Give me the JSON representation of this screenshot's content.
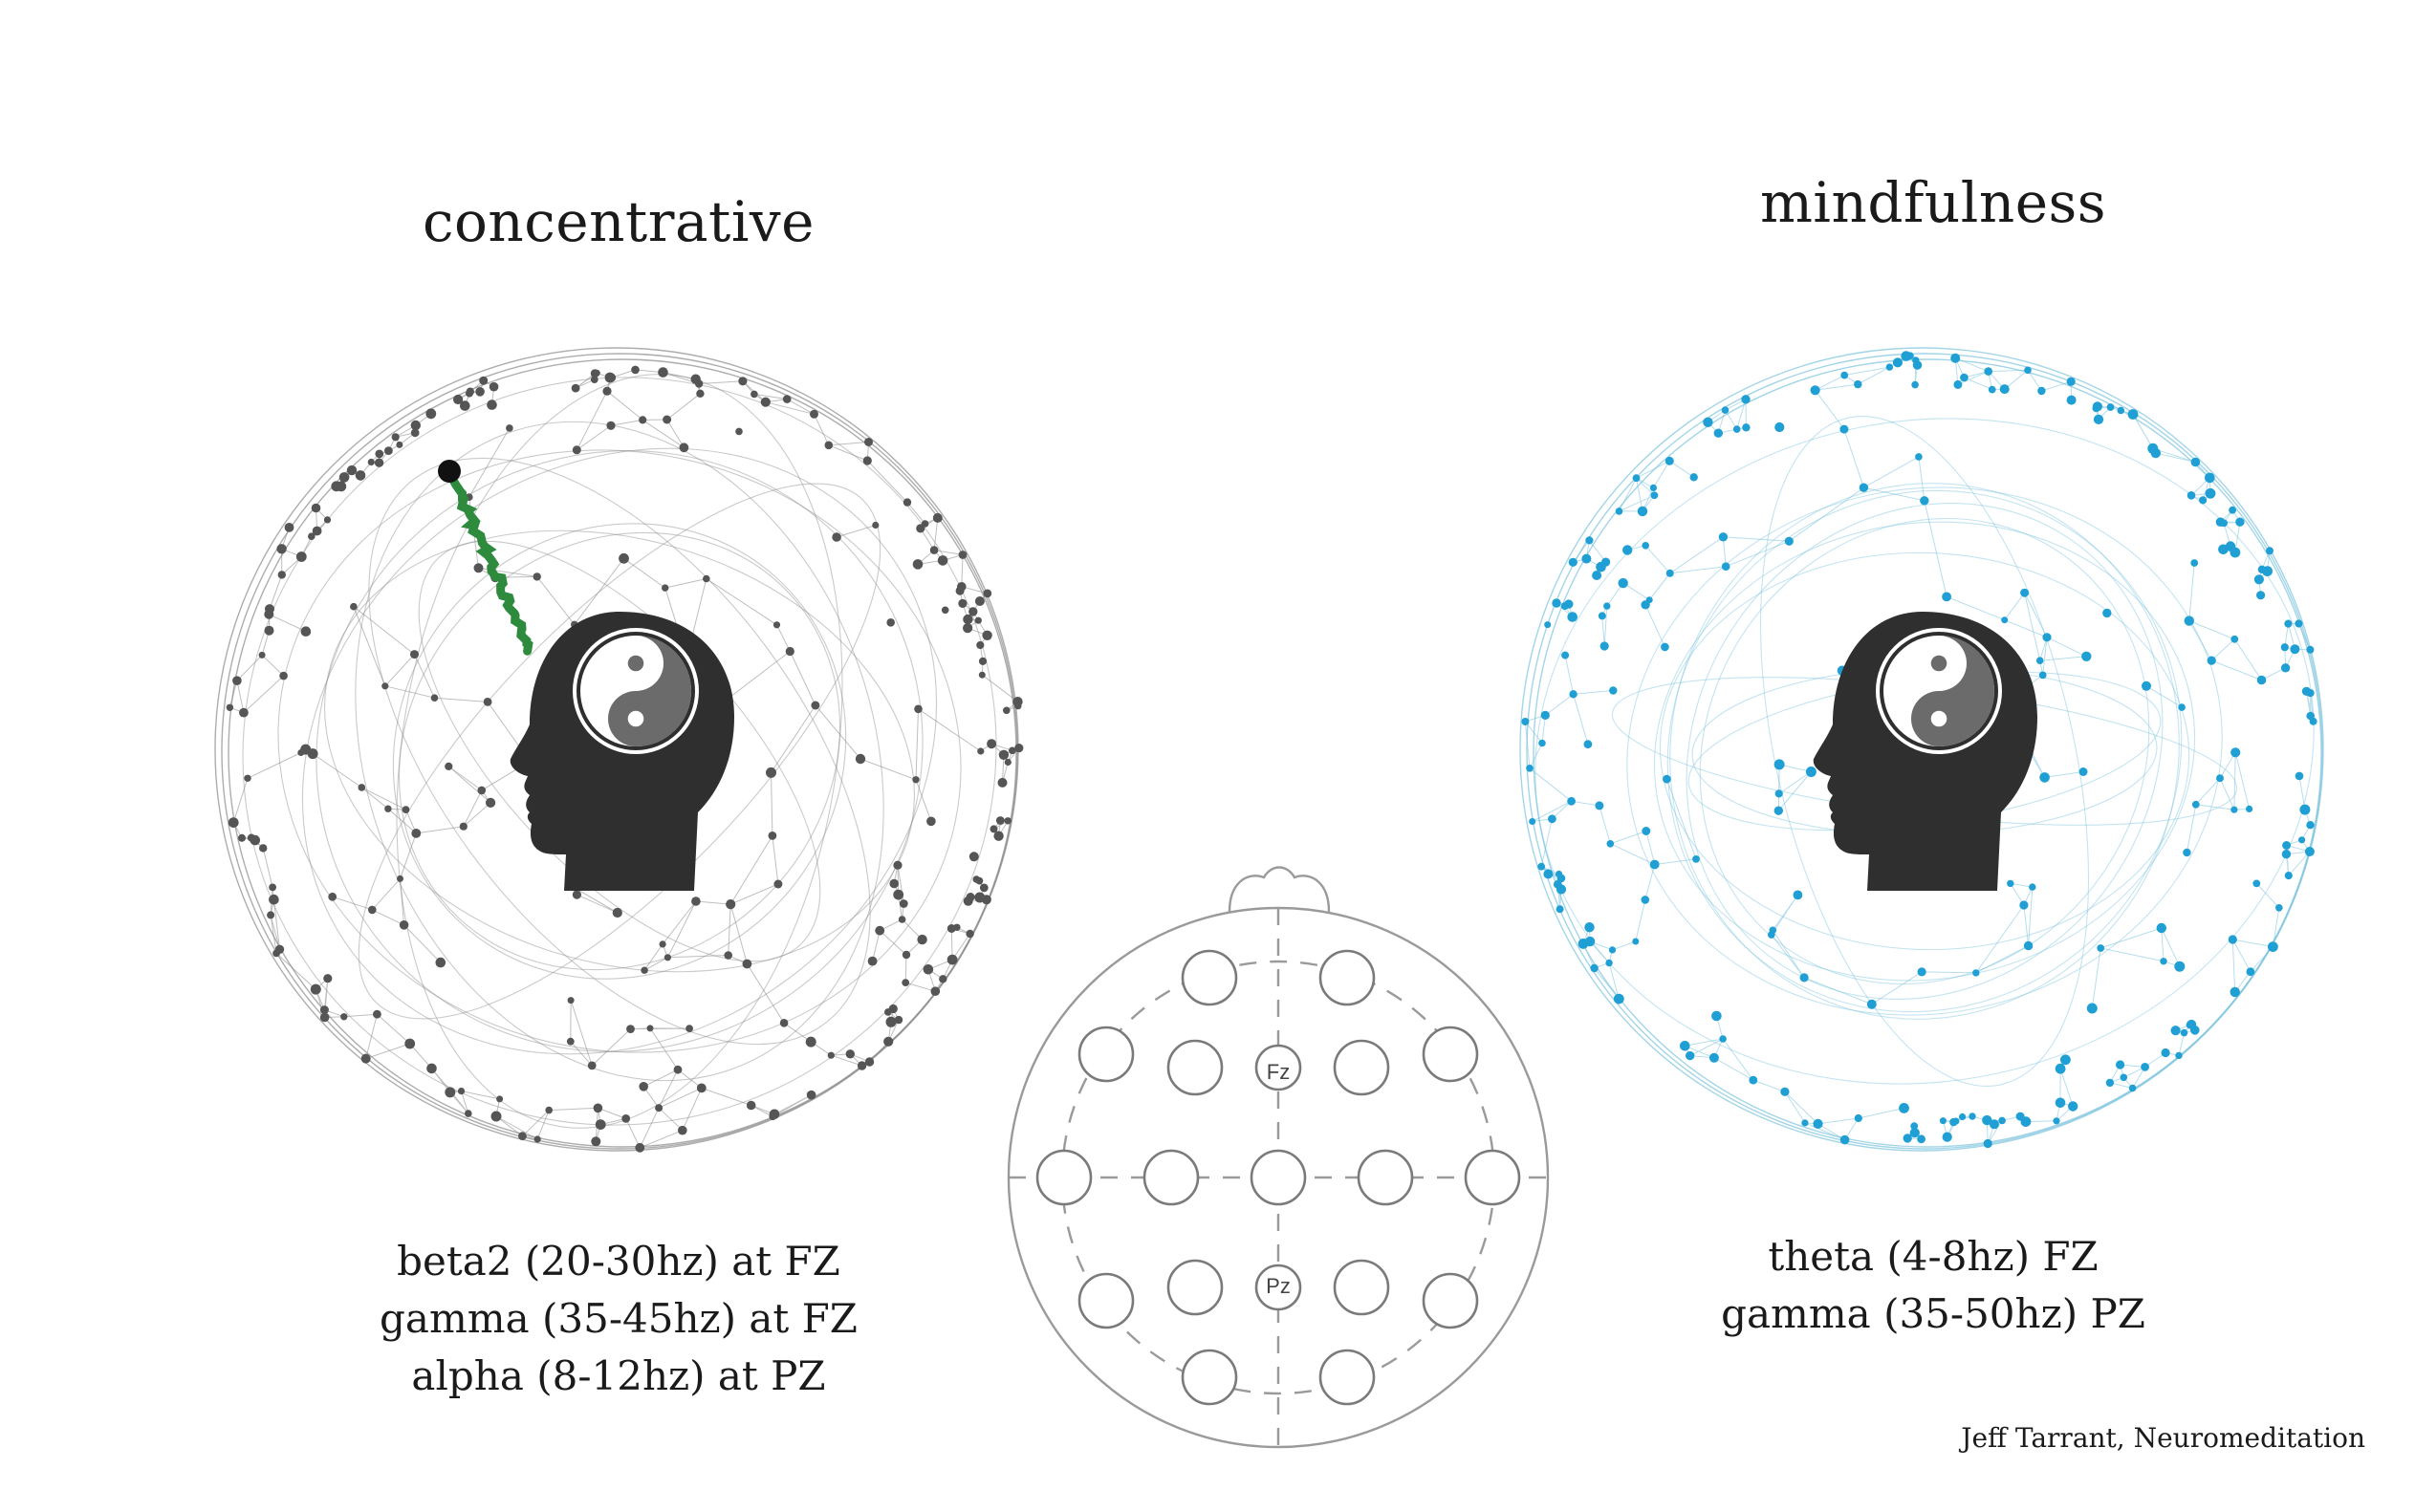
{
  "left_panel": {
    "title": "concentrative",
    "lines": [
      "beta2 (20-30hz) at FZ",
      "gamma (35-45hz) at FZ",
      "alpha (8-12hz) at PZ"
    ]
  },
  "right_panel": {
    "title": "mindfulness",
    "lines": [
      "theta (4-8hz) FZ",
      "gamma (35-50hz) PZ"
    ]
  },
  "electrode_map": {
    "labels": {
      "fz": "Fz",
      "pz": "Pz"
    }
  },
  "credit": "Jeff Tarrant, Neuromeditation",
  "colors": {
    "left_network": "#8a8a8a",
    "left_nodes": "#555555",
    "right_network": "#7cc3dd",
    "right_nodes": "#1f9fd4",
    "pointer": "#2e8b3e",
    "head": "#2f2f2f",
    "map_lines": "#9a9a9a"
  },
  "icons": {
    "head": "head-silhouette-icon",
    "symbol": "yin-yang-icon"
  }
}
